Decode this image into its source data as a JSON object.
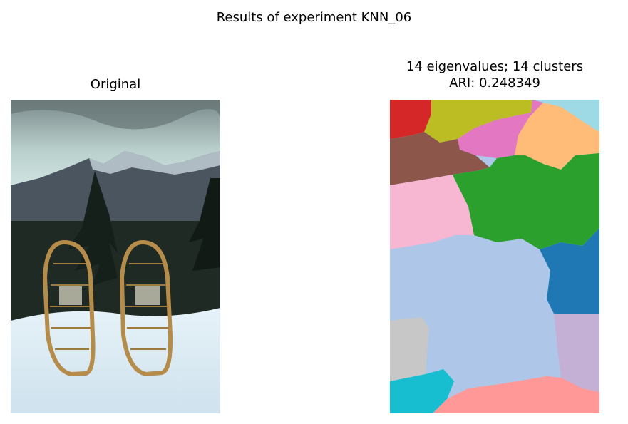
{
  "figure": {
    "suptitle": "Results of experiment KNN_06"
  },
  "left_panel": {
    "title": "Original",
    "image_subject": "snowshoes standing in snow in front of snowy mountains and pine trees"
  },
  "right_panel": {
    "title_line1": "14 eigenvalues; 14 clusters",
    "title_line2": "ARI: 0.248349"
  },
  "cluster_colors": [
    "#d62728",
    "#bcbd22",
    "#e377c2",
    "#9edae5",
    "#ffbb78",
    "#8c564b",
    "#2ca02c",
    "#f7b6d2",
    "#1f77b4",
    "#aec7e8",
    "#c7c7c7",
    "#c5b0d5",
    "#17becf",
    "#ff9896"
  ]
}
